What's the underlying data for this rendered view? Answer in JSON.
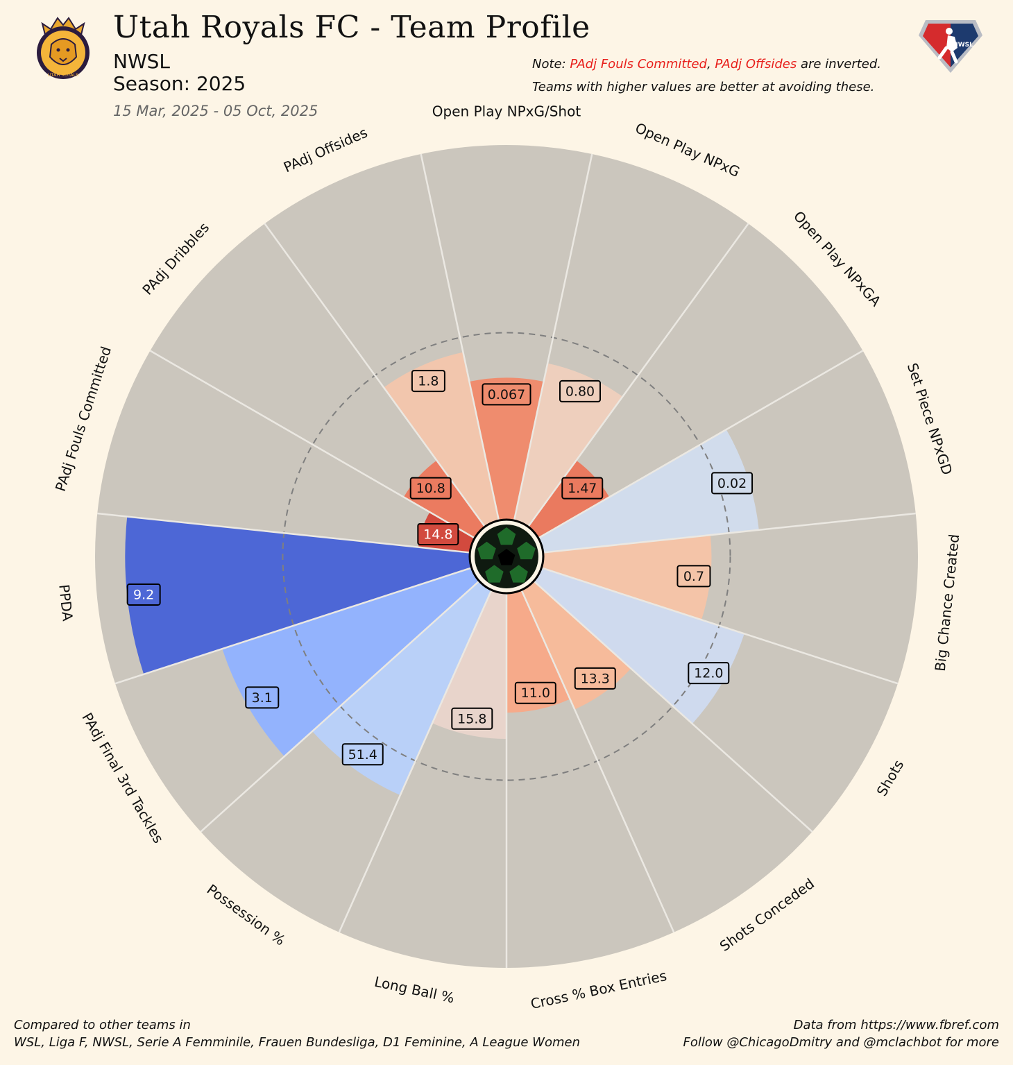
{
  "header": {
    "title": "Utah Royals FC - Team Profile",
    "league": "NWSL",
    "season": "Season: 2025",
    "date_range": "15 Mar, 2025 - 05 Oct, 2025",
    "note_prefix": "Note: ",
    "note_metric1": "PAdj Fouls Committed",
    "note_sep": ", ",
    "note_metric2": "PAdj Offsides",
    "note_suffix": " are inverted.",
    "note_line2": "Teams with higher values are better at avoiding these."
  },
  "logos": {
    "team_logo_text": "UTAH ROYALS",
    "league_logo_text": "NWSL"
  },
  "footer": {
    "left1": "Compared to other teams in",
    "left2": "WSL, Liga F, NWSL, Serie A Femminile, Frauen Bundesliga, D1 Feminine, A League Women",
    "right1": "Data from https://www.fbref.com",
    "right2": "Follow @ChicagoDmitry and @mclachbot for more"
  },
  "chart_data": {
    "type": "polar_bar",
    "radial_range": [
      0,
      100
    ],
    "reference_ring_percentile": 50,
    "start_direction": "top",
    "direction": "clockwise",
    "categories": [
      "Open Play NPxG/Shot",
      "Open Play NPxG",
      "Open Play NPxGA",
      "Set Piece NPxGD",
      "Big Chance Created",
      "Shots",
      "Shots Conceded",
      "Cross % Box Entries",
      "Long Ball %",
      "Possession %",
      "PAdj Final 3rd Tackles",
      "PPDA",
      "PAdj Fouls Committed",
      "PAdj Dribbles",
      "PAdj Offsides"
    ],
    "percentiles": [
      38,
      43,
      22,
      58,
      45,
      57,
      35,
      32,
      39,
      60,
      70,
      92,
      14,
      22,
      46
    ],
    "value_labels": [
      "0.067",
      "0.80",
      "1.47",
      "0.02",
      "0.7",
      "12.0",
      "13.3",
      "11.0",
      "15.8",
      "51.4",
      "3.1",
      "9.2",
      "14.8",
      "10.8",
      "1.8"
    ],
    "bar_colors": [
      "#ef8c6e",
      "#eecfbd",
      "#ea7a5f",
      "#d1dcec",
      "#f4c4a8",
      "#cfdaee",
      "#f6bb9b",
      "#f6aa8a",
      "#e8d4cb",
      "#b9d0f8",
      "#93b3fd",
      "#4d67d6",
      "#d24a3e",
      "#eb7b60",
      "#f2c6ad"
    ],
    "colors": {
      "background": "#fdf5e6",
      "slice_bg": "#cbc6bd",
      "divider": "#ebe8e2",
      "reference_ring": "#7f7f7f"
    }
  }
}
